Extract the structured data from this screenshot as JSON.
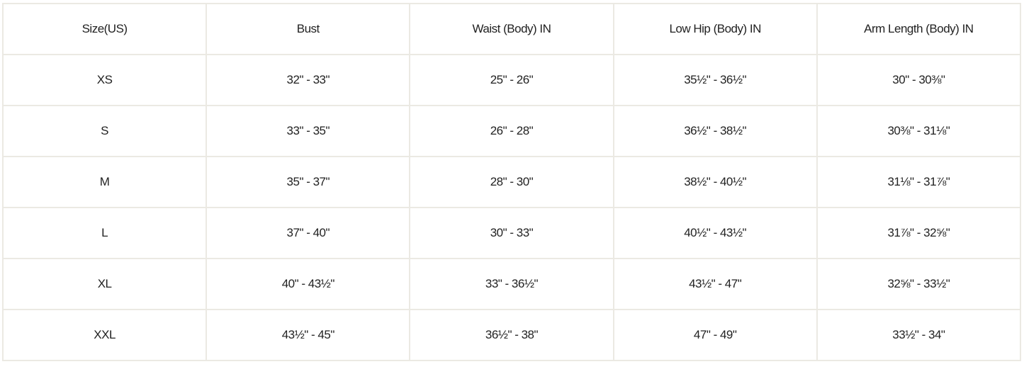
{
  "headers": [
    "Size(US)",
    "Bust",
    "Waist (Body) IN",
    "Low Hip (Body) IN",
    "Arm Length (Body) IN"
  ],
  "rows": [
    [
      "XS",
      "32\" - 33\"",
      "25\" - 26\"",
      "35½\" - 36½\"",
      "30\" - 30⅜\""
    ],
    [
      "S",
      "33\" - 35\"",
      "26\" - 28\"",
      "36½\" - 38½\"",
      "30⅜\" - 31⅛\""
    ],
    [
      "M",
      "35\" - 37\"",
      "28\" - 30\"",
      "38½\" - 40½\"",
      "31⅛\" - 31⅞\""
    ],
    [
      "L",
      "37\" - 40\"",
      "30\" - 33\"",
      "40½\" - 43½\"",
      "31⅞\" - 32⅝\""
    ],
    [
      "XL",
      "40\" - 43½\"",
      "33\" - 36½\"",
      "43½\" - 47\"",
      "32⅝\" - 33½\""
    ],
    [
      "XXL",
      "43½\" - 45\"",
      "36½\" - 38\"",
      "47\" - 49\"",
      "33½\" - 34\""
    ]
  ]
}
